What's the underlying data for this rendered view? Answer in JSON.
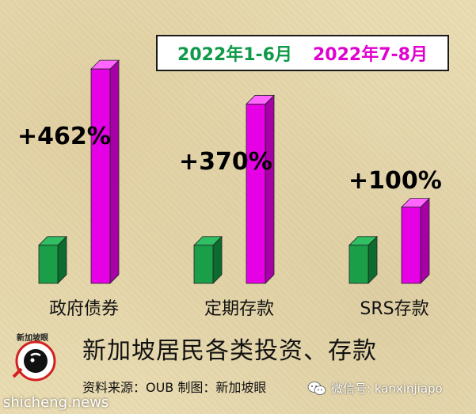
{
  "chart_data": {
    "type": "bar",
    "categories": [
      "政府债券",
      "定期存款",
      "SRS存款"
    ],
    "series": [
      {
        "name": "2022年1-6月",
        "values": [
          1.0,
          1.0,
          1.0
        ]
      },
      {
        "name": "2022年7-8月",
        "values": [
          5.62,
          4.7,
          2.0
        ]
      }
    ],
    "annotations": [
      "+462%",
      "+370%",
      "+100%"
    ],
    "legend_position": "top-right",
    "grid": false
  },
  "colors": {
    "series1": "#1a9e48",
    "series2": "#e600e6",
    "legend_series1_text": "#0f9a49",
    "legend_series2_text": "#e000d0"
  },
  "footer": {
    "title": "新加坡居民各类投资、存款",
    "source": "资料来源：OUB     制图：新加坡眼"
  },
  "logo": {
    "name": "xinjiapoyan-logo",
    "text": "新加坡眼"
  },
  "watermark": "shicheng.news",
  "wechat": {
    "icon": "wechat-icon",
    "text": "微信号: kanxinjiapo"
  }
}
